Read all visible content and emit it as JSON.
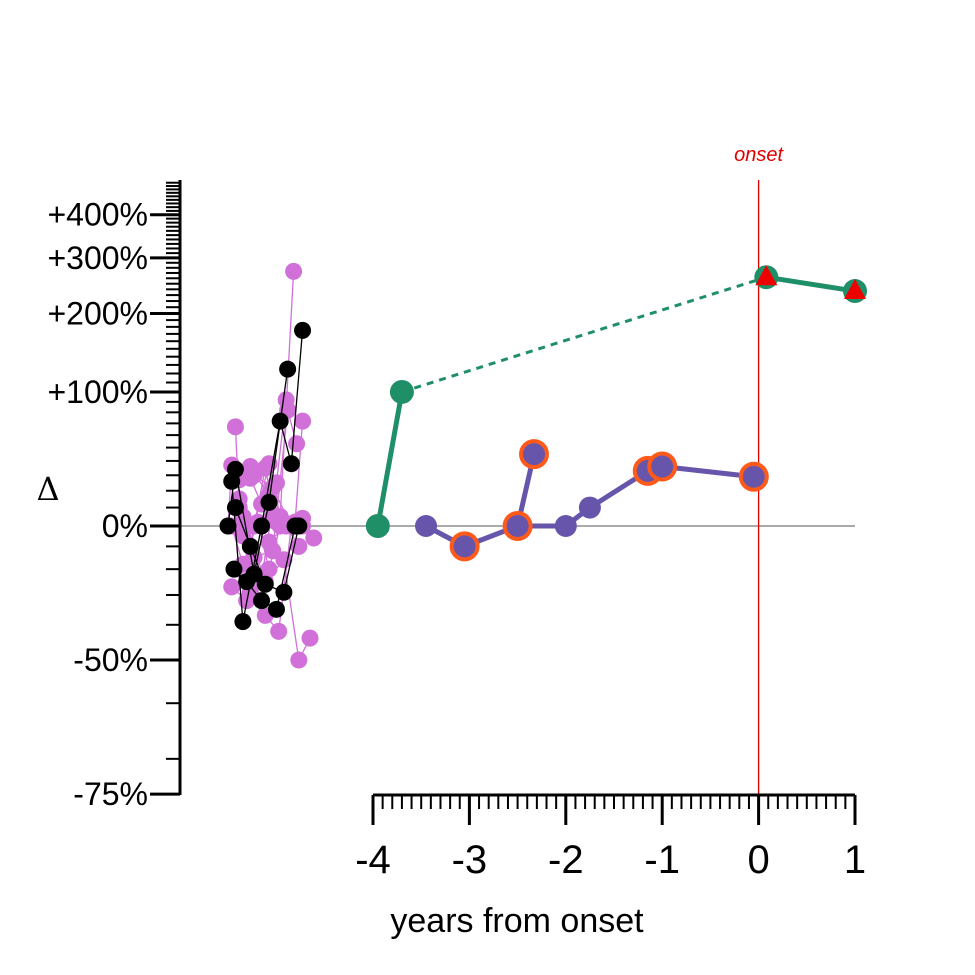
{
  "chart_data": {
    "type": "scatter",
    "title": "",
    "xlabel": "years from onset",
    "ylabel": "Δ",
    "xlim": [
      -4,
      1
    ],
    "x_ticks": [
      -4,
      -3,
      -2,
      -1,
      0,
      1
    ],
    "x_tick_labels": [
      "-4",
      "-3",
      "-2",
      "-1",
      "0",
      "1"
    ],
    "y_scale": "log-ratio (value / baseline)",
    "y_ticks": [
      -75,
      -50,
      0,
      100,
      200,
      300,
      400
    ],
    "y_tick_labels": [
      "-75%",
      "-50%",
      "0%",
      "+100%",
      "+200%",
      "+300%",
      "+400%"
    ],
    "reference_line": {
      "x": 0,
      "label": "onset",
      "color": "#e00000"
    },
    "zero_line": 0,
    "colors": {
      "controls_pink": "#d070d8",
      "controls_black": "#000000",
      "green_subject": "#1f8f68",
      "purple_subject": "#6655aa",
      "highlight_ring": "#ff5a1a",
      "triangle_marker": "#ee0000",
      "onset_line": "#e00000"
    },
    "green_subject": {
      "points": [
        {
          "x": -3.95,
          "y": 0
        },
        {
          "x": -3.7,
          "y": 100
        },
        {
          "x": 0.08,
          "y": 262
        },
        {
          "x": 1.0,
          "y": 237
        }
      ],
      "gap_after_index": 1,
      "triangle_marked": [
        2,
        3
      ]
    },
    "purple_subject": {
      "points": [
        {
          "x": -3.45,
          "y": 0,
          "ring": false
        },
        {
          "x": -3.05,
          "y": -10,
          "ring": true
        },
        {
          "x": -2.5,
          "y": 0,
          "ring": true
        },
        {
          "x": -2.33,
          "y": 45,
          "ring": true
        },
        {
          "x": -2.0,
          "y": 0,
          "ring": false
        },
        {
          "x": -1.75,
          "y": 10,
          "ring": false
        },
        {
          "x": -1.15,
          "y": 33,
          "ring": true
        },
        {
          "x": -1.0,
          "y": 36,
          "ring": true
        },
        {
          "x": -0.05,
          "y": 29,
          "ring": true
        }
      ],
      "path": [
        0,
        1,
        2,
        3,
        2,
        4,
        5,
        6,
        7,
        8
      ]
    },
    "control_pink_lines": [
      [
        [
          0,
          0
        ],
        [
          0.05,
          37
        ],
        [
          0.3,
          28
        ],
        [
          0.45,
          12
        ],
        [
          0.6,
          5
        ]
      ],
      [
        [
          0.05,
          0
        ],
        [
          0.2,
          -18
        ],
        [
          0.4,
          2
        ],
        [
          0.55,
          -20
        ],
        [
          0.7,
          0
        ]
      ],
      [
        [
          0.1,
          67
        ],
        [
          0.15,
          10
        ],
        [
          0.3,
          -10
        ],
        [
          0.5,
          35
        ],
        [
          0.65,
          2
        ]
      ],
      [
        [
          0.05,
          -27
        ],
        [
          0.25,
          -32
        ],
        [
          0.45,
          -24
        ],
        [
          0.65,
          25
        ],
        [
          0.78,
          92
        ]
      ],
      [
        [
          0.15,
          15
        ],
        [
          0.35,
          0
        ],
        [
          0.55,
          38
        ],
        [
          0.7,
          5
        ],
        [
          0.88,
          273
        ]
      ],
      [
        [
          0.2,
          -5
        ],
        [
          0.35,
          -15
        ],
        [
          0.6,
          -12
        ],
        [
          0.8,
          82
        ],
        [
          0.92,
          53
        ]
      ],
      [
        [
          0.1,
          -20
        ],
        [
          0.3,
          -29
        ],
        [
          0.5,
          -37
        ],
        [
          0.68,
          -42
        ],
        [
          0.85,
          0
        ]
      ],
      [
        [
          0.15,
          27
        ],
        [
          0.3,
          36
        ],
        [
          0.55,
          17
        ],
        [
          0.78,
          0
        ],
        [
          0.95,
          -10
        ]
      ],
      [
        [
          0.2,
          5
        ],
        [
          0.45,
          0
        ],
        [
          0.7,
          3
        ],
        [
          0.9,
          2
        ],
        [
          1.0,
          72
        ]
      ],
      [
        [
          0.25,
          0
        ],
        [
          0.5,
          -25
        ],
        [
          0.75,
          -16
        ],
        [
          0.95,
          -50
        ],
        [
          1.1,
          -44
        ]
      ],
      [
        [
          0.3,
          -10
        ],
        [
          0.55,
          -8
        ],
        [
          0.8,
          1
        ],
        [
          1.0,
          0
        ],
        [
          1.15,
          -6
        ]
      ],
      [
        [
          0.35,
          30
        ],
        [
          0.6,
          22
        ],
        [
          0.85,
          0
        ],
        [
          1.0,
          4
        ]
      ]
    ],
    "control_black_lines": [
      [
        [
          0,
          0
        ],
        [
          0.1,
          34
        ],
        [
          0.35,
          -22
        ],
        [
          0.55,
          13
        ],
        [
          0.8,
          125
        ]
      ],
      [
        [
          0.05,
          26
        ],
        [
          0.2,
          -39
        ],
        [
          0.45,
          0
        ],
        [
          0.7,
          72
        ],
        [
          0.85,
          38
        ],
        [
          1.0,
          175
        ]
      ],
      [
        [
          0.1,
          10
        ],
        [
          0.3,
          -10
        ],
        [
          0.5,
          -26
        ],
        [
          0.75,
          -29
        ],
        [
          0.95,
          0
        ]
      ],
      [
        [
          0.08,
          -20
        ],
        [
          0.25,
          -25
        ],
        [
          0.45,
          -32
        ],
        [
          0.65,
          -35
        ],
        [
          0.9,
          0
        ]
      ]
    ],
    "control_x_range_years": [
      -6.4,
      -5.15
    ]
  }
}
